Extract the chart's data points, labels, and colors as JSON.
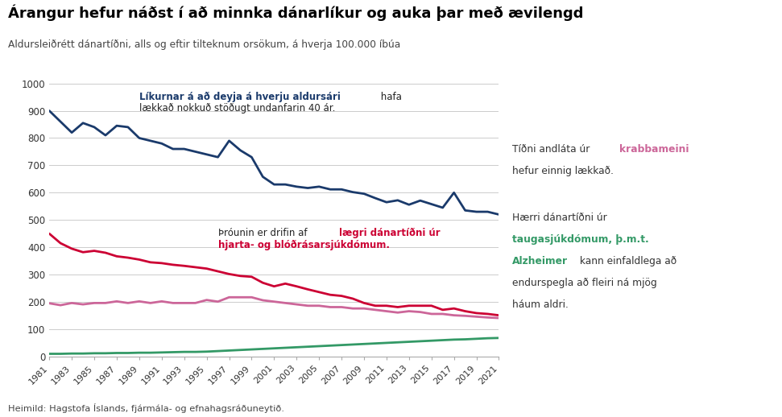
{
  "title": "Árangur hefur náðst í að minnka dánarlíkur og auka þar með ævilengd",
  "subtitle": "Aldursleiðrétt dánartíðni, alls og eftir tilteknum orsökum, á hverja 100.000 íbúa",
  "footer": "Heimild: Hagstofa Íslands, fjármála- og efnahagsráðuneytið.",
  "years": [
    1981,
    1982,
    1983,
    1984,
    1985,
    1986,
    1987,
    1988,
    1989,
    1990,
    1991,
    1992,
    1993,
    1994,
    1995,
    1996,
    1997,
    1998,
    1999,
    2000,
    2001,
    2002,
    2003,
    2004,
    2005,
    2006,
    2007,
    2008,
    2009,
    2010,
    2011,
    2012,
    2013,
    2014,
    2015,
    2016,
    2017,
    2018,
    2019,
    2020,
    2021
  ],
  "total": [
    900,
    860,
    820,
    855,
    840,
    810,
    845,
    840,
    800,
    790,
    780,
    760,
    760,
    750,
    740,
    730,
    790,
    755,
    730,
    658,
    630,
    630,
    622,
    617,
    622,
    612,
    612,
    602,
    596,
    580,
    565,
    572,
    556,
    571,
    558,
    545,
    600,
    535,
    530,
    530,
    520
  ],
  "cardiovascular": [
    450,
    415,
    395,
    382,
    387,
    380,
    367,
    362,
    355,
    345,
    342,
    336,
    332,
    327,
    322,
    312,
    302,
    295,
    292,
    270,
    257,
    267,
    257,
    246,
    236,
    226,
    222,
    212,
    196,
    186,
    186,
    181,
    186,
    186,
    186,
    171,
    176,
    166,
    159,
    156,
    151
  ],
  "cancer": [
    195,
    188,
    196,
    191,
    196,
    196,
    202,
    196,
    202,
    196,
    202,
    196,
    196,
    196,
    207,
    201,
    217,
    217,
    217,
    206,
    201,
    196,
    191,
    186,
    186,
    181,
    181,
    176,
    176,
    171,
    166,
    161,
    166,
    163,
    156,
    156,
    151,
    149,
    146,
    143,
    141
  ],
  "neuro": [
    10,
    10,
    11,
    11,
    12,
    12,
    13,
    13,
    14,
    14,
    15,
    16,
    17,
    17,
    18,
    20,
    22,
    24,
    26,
    28,
    30,
    32,
    34,
    36,
    38,
    40,
    42,
    44,
    46,
    48,
    50,
    52,
    54,
    56,
    58,
    60,
    62,
    63,
    65,
    67,
    68
  ],
  "color_total": "#1a3a6b",
  "color_cardiovascular": "#cc0033",
  "color_cancer": "#cc6699",
  "color_neuro": "#339966",
  "ylim": [
    0,
    1000
  ],
  "yticks": [
    0,
    100,
    200,
    300,
    400,
    500,
    600,
    700,
    800,
    900,
    1000
  ],
  "xtick_years": [
    1981,
    1983,
    1985,
    1987,
    1989,
    1991,
    1993,
    1995,
    1997,
    1999,
    2001,
    2003,
    2005,
    2007,
    2009,
    2011,
    2013,
    2015,
    2017,
    2019,
    2021
  ]
}
